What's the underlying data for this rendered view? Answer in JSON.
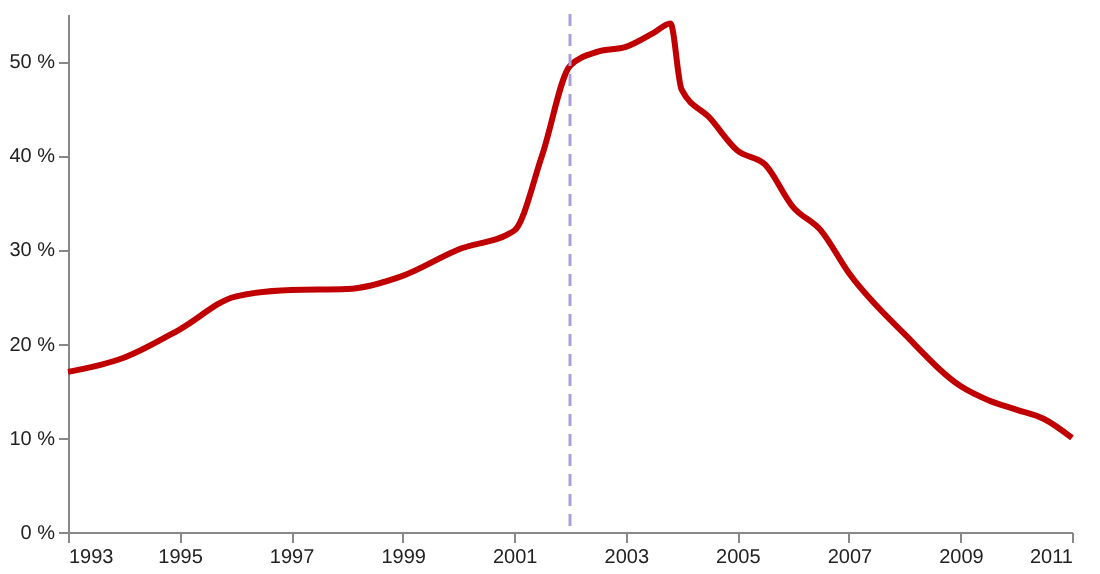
{
  "chart_data": {
    "type": "line",
    "x": [
      1993,
      1994,
      1995,
      1996,
      1997,
      1998,
      1999,
      2000,
      2001,
      2001.5,
      2002,
      2002.5,
      2003,
      2003.5,
      2003.8,
      2004,
      2004.5,
      2005,
      2005.5,
      2006,
      2006.5,
      2007,
      2008,
      2009,
      2009.5,
      2010,
      2010.5,
      2011
    ],
    "series": [
      {
        "color": "#c00000",
        "values": [
          17,
          18.5,
          21.5,
          25,
          25.7,
          25.8,
          27.2,
          30,
          32,
          40,
          49.5,
          51,
          51.5,
          53,
          54,
          47,
          44,
          40.5,
          39,
          34.5,
          32,
          27.5,
          21,
          15.5,
          14,
          13,
          12,
          10
        ]
      }
    ],
    "xlim": [
      1993,
      2011
    ],
    "xticks": [
      1993,
      1995,
      1997,
      1999,
      2001,
      2003,
      2005,
      2007,
      2009,
      2011
    ],
    "ylim": [
      0,
      55
    ],
    "yticks": [
      {
        "value": 0,
        "label": "0 %"
      },
      {
        "value": 10,
        "label": "10 %"
      },
      {
        "value": 20,
        "label": "20 %"
      },
      {
        "value": 30,
        "label": "30 %"
      },
      {
        "value": 40,
        "label": "40 %"
      },
      {
        "value": 50,
        "label": "50 %"
      }
    ],
    "ref_lines": [
      {
        "axis": "x",
        "value": 2002,
        "color": "#a99fd9",
        "line_style": "dashed"
      }
    ],
    "grid": false,
    "marker": "none",
    "line_style": "solid"
  }
}
